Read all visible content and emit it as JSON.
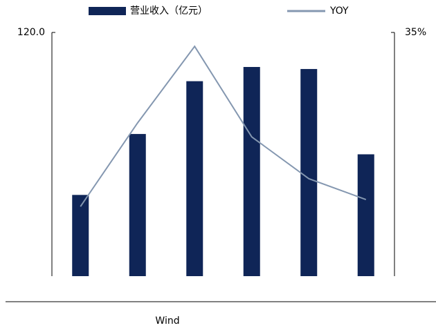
{
  "chart_data": {
    "type": "bar_line",
    "categories": [
      null,
      null,
      null,
      null,
      null,
      null
    ],
    "series": [
      {
        "name": "营业收入（亿元）",
        "color": "#0f2557",
        "values": [
          40,
          70,
          96,
          103,
          102,
          60
        ]
      },
      {
        "name": "YOY",
        "color": "#8497b0",
        "values": [
          10,
          22,
          33,
          20,
          14,
          11
        ],
        "axis": "y2"
      }
    ],
    "ylim": [
      0,
      120
    ],
    "yticks": [
      {
        "value": 120,
        "label": "120.0"
      }
    ],
    "y2lim": [
      0,
      35
    ],
    "y2ticks": [
      {
        "value": 35,
        "label": "35%"
      }
    ],
    "source": "Wind"
  }
}
